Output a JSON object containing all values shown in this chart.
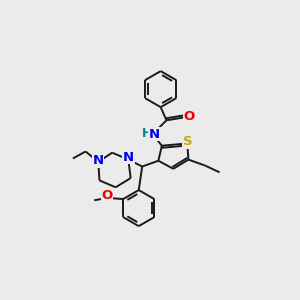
{
  "background_color": "#ebebeb",
  "bond_color": "#1a1a1a",
  "atom_colors": {
    "N": "#0000ee",
    "O": "#ee0000",
    "S": "#ccaa00",
    "H": "#008080",
    "C": "#1a1a1a"
  },
  "figsize": [
    3.0,
    3.0
  ],
  "dpi": 100,
  "lw": 1.4
}
